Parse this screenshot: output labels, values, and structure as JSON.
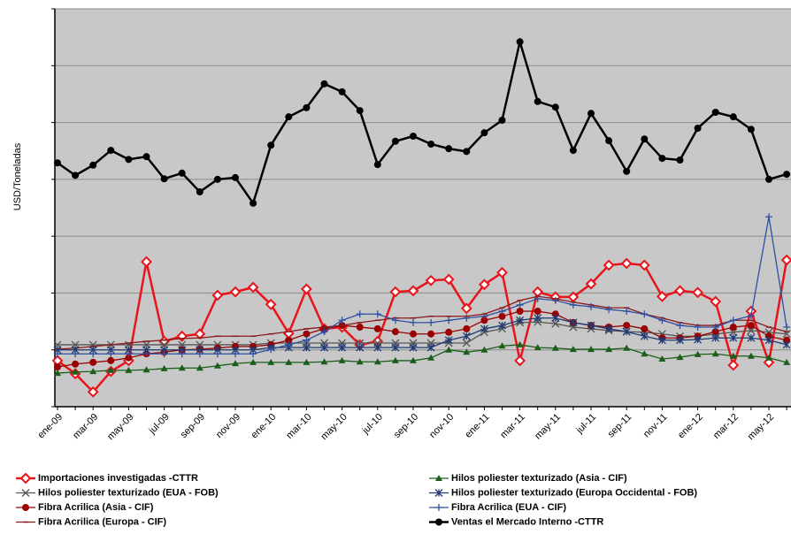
{
  "chart_data": {
    "type": "line",
    "y_label": "USD/Toneladas",
    "categories": [
      "ene-09",
      null,
      "mar-09",
      null,
      "may-09",
      null,
      "jul-09",
      null,
      "sep-09",
      null,
      "nov-09",
      null,
      "ene-10",
      null,
      "mar-10",
      null,
      "may-10",
      null,
      "jul-10",
      null,
      "sep-10",
      null,
      "nov-10",
      null,
      "ene-11",
      null,
      "mar-11",
      null,
      "may-11",
      null,
      "jul-11",
      null,
      "sep-11",
      null,
      "nov-11",
      null,
      "ene-12",
      null,
      "mar-12",
      null,
      "may-12",
      null
    ],
    "ylim": [
      0,
      7
    ],
    "yticks": [
      0,
      1,
      2,
      3,
      4,
      5,
      6,
      7
    ],
    "grid": true,
    "background": "#c8c8c8",
    "series": [
      {
        "name": "Importaciones investigadas -CTTR",
        "color": "#e8141c",
        "marker": "diamond",
        "values": [
          0.81,
          0.58,
          0.26,
          0.62,
          0.81,
          2.55,
          1.15,
          1.24,
          1.28,
          1.96,
          2.02,
          2.1,
          1.8,
          1.29,
          2.07,
          1.37,
          1.4,
          1.09,
          1.15,
          2.02,
          2.04,
          2.22,
          2.24,
          1.73,
          2.15,
          2.36,
          0.81,
          2.02,
          1.93,
          1.93,
          2.16,
          2.49,
          2.52,
          2.49,
          1.94,
          2.04,
          2.01,
          1.85,
          0.73,
          1.68,
          0.78,
          2.58
        ]
      },
      {
        "name": "Hilos poliester texturizado (EUA - FOB)",
        "color": "#555555",
        "marker": "x",
        "values": [
          1.09,
          1.09,
          1.09,
          1.09,
          1.09,
          1.09,
          1.09,
          1.09,
          1.09,
          1.09,
          1.09,
          1.09,
          1.12,
          1.12,
          1.12,
          1.12,
          1.12,
          1.12,
          1.12,
          1.12,
          1.12,
          1.12,
          1.12,
          1.12,
          1.31,
          1.37,
          1.48,
          1.49,
          1.46,
          1.4,
          1.37,
          1.34,
          1.32,
          1.31,
          1.28,
          1.24,
          1.24,
          1.28,
          1.31,
          1.34,
          1.31,
          1.28
        ]
      },
      {
        "name": "Fibra Acrilica (Asia - CIF)",
        "color": "#9b0000",
        "marker": "circle",
        "values": [
          0.7,
          0.75,
          0.78,
          0.81,
          0.86,
          0.93,
          0.96,
          1.0,
          1.01,
          1.03,
          1.06,
          1.06,
          1.09,
          1.17,
          1.28,
          1.37,
          1.43,
          1.4,
          1.37,
          1.32,
          1.28,
          1.28,
          1.31,
          1.37,
          1.52,
          1.59,
          1.68,
          1.68,
          1.63,
          1.48,
          1.43,
          1.4,
          1.43,
          1.37,
          1.21,
          1.21,
          1.24,
          1.32,
          1.4,
          1.43,
          1.24,
          1.17
        ]
      },
      {
        "name": "Fibra Acrilica (Europa - CIF)",
        "color": "#8b1a1a",
        "marker": "dash",
        "values": [
          1.01,
          1.03,
          1.06,
          1.09,
          1.12,
          1.15,
          1.17,
          1.2,
          1.21,
          1.24,
          1.24,
          1.24,
          1.28,
          1.32,
          1.37,
          1.4,
          1.43,
          1.48,
          1.52,
          1.56,
          1.56,
          1.59,
          1.59,
          1.59,
          1.63,
          1.74,
          1.87,
          1.94,
          1.9,
          1.84,
          1.79,
          1.74,
          1.74,
          1.63,
          1.56,
          1.48,
          1.43,
          1.43,
          1.52,
          1.52,
          1.4,
          1.32
        ]
      },
      {
        "name": "Hilos poliester texturizado (Asia - CIF)",
        "color": "#1a5e1a",
        "marker": "triangle",
        "values": [
          0.59,
          0.61,
          0.62,
          0.64,
          0.64,
          0.65,
          0.67,
          0.68,
          0.68,
          0.72,
          0.76,
          0.78,
          0.78,
          0.78,
          0.78,
          0.79,
          0.81,
          0.79,
          0.79,
          0.81,
          0.81,
          0.86,
          1.0,
          0.96,
          1.0,
          1.07,
          1.09,
          1.04,
          1.03,
          1.01,
          1.01,
          1.01,
          1.03,
          0.93,
          0.84,
          0.87,
          0.92,
          0.93,
          0.89,
          0.89,
          0.86,
          0.78
        ]
      },
      {
        "name": "Hilos poliester texturizado (Europa Occidental - FOB)",
        "color": "#1f3b73",
        "marker": "star",
        "values": [
          1.0,
          1.0,
          1.0,
          1.0,
          1.0,
          1.0,
          1.0,
          1.0,
          1.0,
          1.0,
          1.0,
          1.0,
          1.04,
          1.04,
          1.04,
          1.04,
          1.04,
          1.04,
          1.04,
          1.04,
          1.04,
          1.04,
          1.17,
          1.24,
          1.37,
          1.43,
          1.52,
          1.56,
          1.56,
          1.48,
          1.43,
          1.37,
          1.32,
          1.24,
          1.17,
          1.17,
          1.18,
          1.21,
          1.21,
          1.21,
          1.17,
          1.09
        ]
      },
      {
        "name": "Fibra Acrilica (EUA - CIF)",
        "color": "#2f4fa0",
        "marker": "plus",
        "values": [
          0.93,
          0.93,
          0.93,
          0.93,
          0.93,
          0.93,
          0.93,
          0.93,
          0.93,
          0.93,
          0.93,
          0.93,
          1.01,
          1.09,
          1.17,
          1.32,
          1.52,
          1.63,
          1.63,
          1.52,
          1.48,
          1.48,
          1.52,
          1.56,
          1.59,
          1.68,
          1.79,
          1.9,
          1.87,
          1.79,
          1.76,
          1.71,
          1.68,
          1.63,
          1.52,
          1.43,
          1.4,
          1.4,
          1.52,
          1.6,
          3.34,
          1.4
        ]
      },
      {
        "name": "Ventas el Mercado Interno -CTTR",
        "color": "#000000",
        "marker": "circle",
        "values": [
          4.29,
          4.07,
          4.25,
          4.51,
          4.35,
          4.4,
          4.01,
          4.11,
          3.78,
          4.0,
          4.03,
          3.58,
          4.6,
          5.1,
          5.26,
          5.68,
          5.54,
          5.21,
          4.26,
          4.67,
          4.76,
          4.62,
          4.54,
          4.49,
          4.82,
          5.04,
          6.42,
          5.37,
          5.27,
          4.51,
          5.16,
          4.68,
          4.14,
          4.71,
          4.37,
          4.34,
          4.9,
          5.18,
          5.1,
          4.88,
          4.0,
          4.09
        ]
      }
    ]
  }
}
